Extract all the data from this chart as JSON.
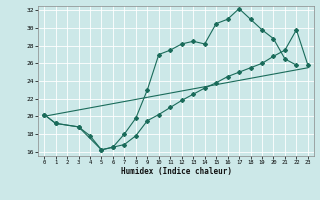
{
  "xlabel": "Humidex (Indice chaleur)",
  "bg_color": "#cce8e8",
  "grid_color": "#b8d8d8",
  "line_color": "#1a6b5a",
  "xlim": [
    -0.5,
    23.5
  ],
  "ylim": [
    15.5,
    32.5
  ],
  "xticks": [
    0,
    1,
    2,
    3,
    4,
    5,
    6,
    7,
    8,
    9,
    10,
    11,
    12,
    13,
    14,
    15,
    16,
    17,
    18,
    19,
    20,
    21,
    22,
    23
  ],
  "yticks": [
    16,
    18,
    20,
    22,
    24,
    26,
    28,
    30,
    32
  ],
  "line1_x": [
    0,
    1,
    3,
    4,
    5,
    6,
    7,
    8,
    9,
    10,
    11,
    12,
    13,
    14,
    15,
    16,
    17,
    18,
    19,
    20,
    21,
    22
  ],
  "line1_y": [
    20.2,
    19.2,
    18.8,
    17.8,
    16.2,
    16.5,
    18.0,
    19.8,
    23.0,
    27.0,
    27.5,
    28.2,
    28.5,
    28.2,
    30.5,
    31.0,
    32.2,
    31.0,
    29.8,
    28.8,
    26.5,
    25.8
  ],
  "line2_x": [
    0,
    1,
    3,
    5,
    6,
    7,
    8,
    9,
    10,
    11,
    12,
    13,
    14,
    15,
    16,
    17,
    18,
    19,
    20,
    21,
    22,
    23
  ],
  "line2_y": [
    20.2,
    19.2,
    18.8,
    16.2,
    16.5,
    16.8,
    17.8,
    19.5,
    20.2,
    21.0,
    21.8,
    22.5,
    23.2,
    23.8,
    24.5,
    25.0,
    25.5,
    26.0,
    26.8,
    27.5,
    29.8,
    25.8
  ],
  "line3_x": [
    0,
    23
  ],
  "line3_y": [
    20.0,
    25.5
  ]
}
